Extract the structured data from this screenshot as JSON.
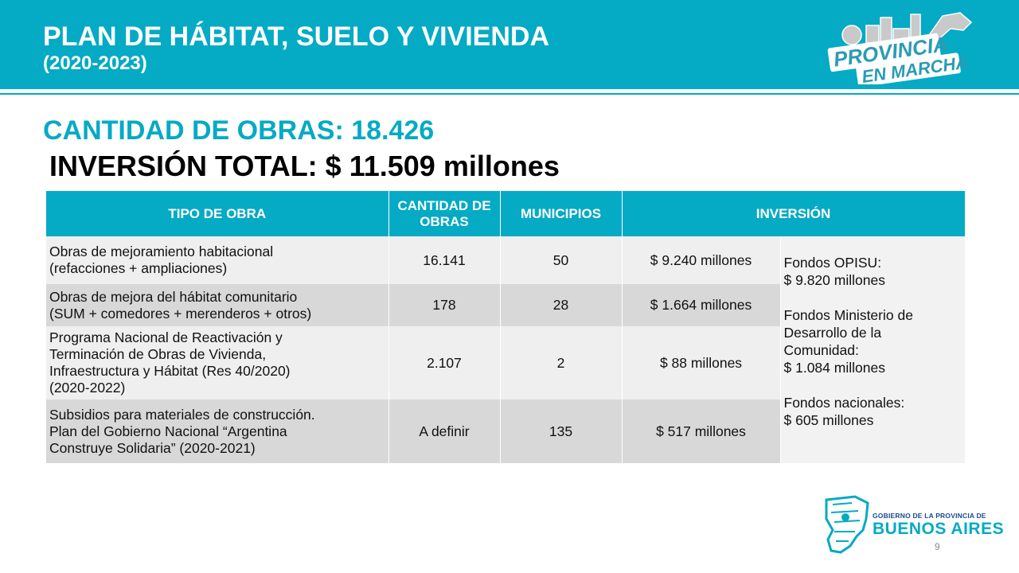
{
  "header": {
    "title": "PLAN DE HÁBITAT, SUELO Y VIVIENDA",
    "subtitle": "(2020-2023)",
    "logo_line1": "PROVINCIA",
    "logo_line2": "EN MARCHA"
  },
  "summary": {
    "obras": "CANTIDAD DE OBRAS: 18.426",
    "inversion": "INVERSIÓN TOTAL: $ 11.509 millones"
  },
  "table": {
    "headers": [
      "TIPO DE OBRA",
      "CANTIDAD DE OBRAS",
      "MUNICIPIOS",
      "INVERSIÓN"
    ],
    "rows": [
      {
        "tipo": "Obras de mejoramiento habitacional\n (refacciones + ampliaciones)",
        "cantidad": "16.141",
        "municipios": "50",
        "inversion": "$ 9.240 millones"
      },
      {
        "tipo": "Obras de mejora del hábitat comunitario\n(SUM + comedores + merenderos + otros)",
        "cantidad": "178",
        "municipios": "28",
        "inversion": "$ 1.664 millones"
      },
      {
        "tipo": "Programa Nacional de Reactivación y\nTerminación de Obras de Vivienda,\nInfraestructura y Hábitat (Res 40/2020)\n(2020-2022)",
        "cantidad": "2.107",
        "municipios": "2",
        "inversion": "$ 88 millones"
      },
      {
        "tipo": "Subsidios para materiales de construcción.\nPlan del Gobierno Nacional “Argentina\nConstruye Solidaria” (2020-2021)",
        "cantidad": "A definir",
        "municipios": "135",
        "inversion": "$ 517 millones"
      }
    ],
    "funds": [
      "Fondos OPISU:\n$ 9.820 millones",
      "Fondos Ministerio de\nDesarrollo de la\nComunidad:\n$ 1.084 millones",
      "Fondos nacionales:\n$ 605 millones"
    ]
  },
  "footer": {
    "gov_small": "GOBIERNO DE LA PROVINCIA DE",
    "gov_big": "BUENOS AIRES",
    "page_number": "9"
  },
  "colors": {
    "accent": "#05aac4",
    "row_light": "#efefef",
    "row_dark": "#d8d8d8"
  }
}
